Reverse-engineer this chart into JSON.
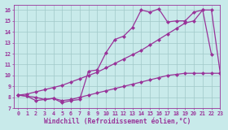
{
  "background_color": "#c8eaea",
  "line_color": "#993399",
  "grid_color": "#a0c8c8",
  "xlabel": "Windchill (Refroidissement éolien,°C)",
  "xlim": [
    -0.5,
    23
  ],
  "ylim": [
    7,
    16.5
  ],
  "yticks": [
    7,
    8,
    9,
    10,
    11,
    12,
    13,
    14,
    15,
    16
  ],
  "xticks": [
    0,
    1,
    2,
    3,
    4,
    5,
    6,
    7,
    8,
    9,
    10,
    11,
    12,
    13,
    14,
    15,
    16,
    17,
    18,
    19,
    20,
    21,
    22,
    23
  ],
  "line1_x": [
    0,
    1,
    2,
    3,
    4,
    5,
    6,
    7,
    8,
    9,
    10,
    11,
    12,
    13,
    14,
    15,
    16,
    17,
    18,
    19,
    20,
    21,
    22
  ],
  "line1_y": [
    8.2,
    8.1,
    7.7,
    7.8,
    7.9,
    7.5,
    7.7,
    7.8,
    10.4,
    10.5,
    12.1,
    13.3,
    13.6,
    14.4,
    16.0,
    15.8,
    16.1,
    14.9,
    15.0,
    15.0,
    15.8,
    16.0,
    11.9
  ],
  "line2_x": [
    0,
    1,
    2,
    3,
    4,
    5,
    6,
    7,
    8,
    9,
    10,
    11,
    12,
    13,
    14,
    15,
    16,
    17,
    18,
    19,
    20,
    21,
    22,
    23
  ],
  "line2_y": [
    8.2,
    8.3,
    8.5,
    8.7,
    8.9,
    9.1,
    9.4,
    9.7,
    10.0,
    10.3,
    10.7,
    11.1,
    11.5,
    11.9,
    12.3,
    12.8,
    13.3,
    13.8,
    14.3,
    14.8,
    15.0,
    16.0,
    16.0,
    10.2
  ],
  "line3_x": [
    0,
    1,
    2,
    3,
    4,
    5,
    6,
    7,
    8,
    9,
    10,
    11,
    12,
    13,
    14,
    15,
    16,
    17,
    18,
    19,
    20,
    21,
    22,
    23
  ],
  "line3_y": [
    8.2,
    8.1,
    8.0,
    7.8,
    7.9,
    7.7,
    7.8,
    8.0,
    8.2,
    8.4,
    8.6,
    8.8,
    9.0,
    9.2,
    9.4,
    9.6,
    9.8,
    10.0,
    10.1,
    10.2,
    10.2,
    10.2,
    10.2,
    10.2
  ],
  "marker": "D",
  "markersize": 2.0,
  "linewidth": 0.9,
  "tick_fontsize": 4.8,
  "label_fontsize": 5.8,
  "label_color": "#993399",
  "tick_color": "#993399"
}
